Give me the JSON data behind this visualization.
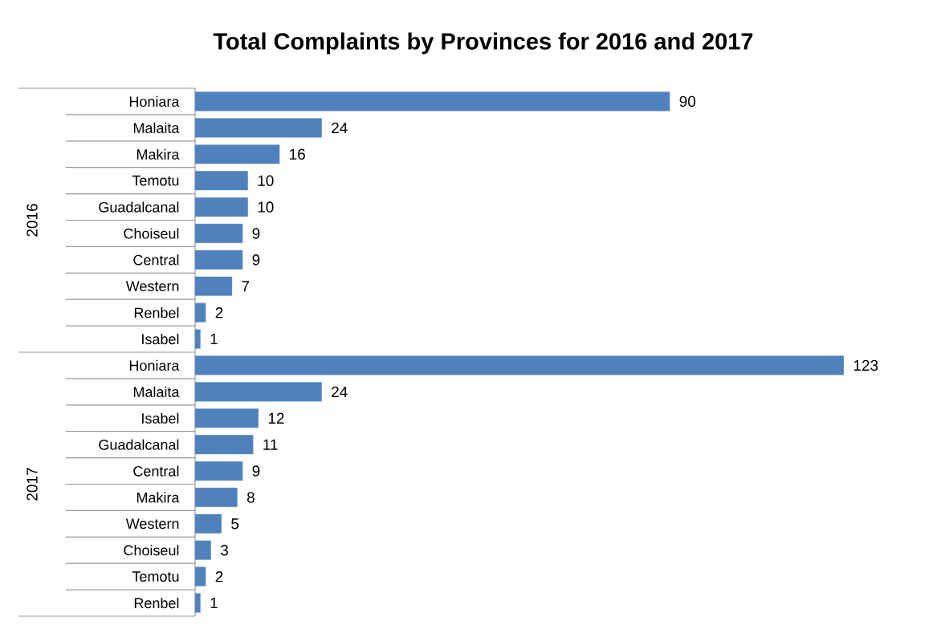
{
  "chart_data": {
    "type": "bar",
    "orientation": "horizontal",
    "title": "Total Complaints by Provinces for 2016 and 2017",
    "categories": [
      "Honiara",
      "Malaita",
      "Makira",
      "Temotu",
      "Guadalcanal",
      "Choiseul",
      "Central",
      "Western",
      "Renbel",
      "Isabel",
      "Honiara",
      "Malaita",
      "Isabel",
      "Guadalcanal",
      "Central",
      "Makira",
      "Western",
      "Choiseul",
      "Temotu",
      "Renbel"
    ],
    "values": [
      90,
      24,
      16,
      10,
      10,
      9,
      9,
      7,
      2,
      1,
      123,
      24,
      12,
      11,
      9,
      8,
      5,
      3,
      2,
      1
    ],
    "color": "#4f81bd",
    "data_labels": true,
    "annotations": [
      "2016",
      "2017"
    ]
  }
}
